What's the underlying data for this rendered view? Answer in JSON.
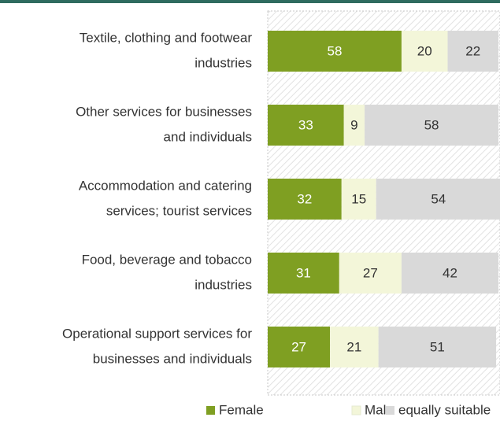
{
  "chart_data": {
    "type": "stacked-bar-horizontal",
    "categories": [
      [
        "Textile, clothing and footwear",
        "industries"
      ],
      [
        "Other services for businesses",
        "and individuals"
      ],
      [
        "Accommodation and catering",
        "services; tourist services"
      ],
      [
        "Food, beverage and tobacco",
        "industries"
      ],
      [
        "Operational support services for",
        "businesses and individuals"
      ]
    ],
    "series": [
      {
        "name": "Female",
        "color": "#7f9f22",
        "values": [
          58,
          33,
          32,
          31,
          27
        ]
      },
      {
        "name": "Male",
        "color": "#f3f6d9",
        "values": [
          20,
          9,
          15,
          27,
          21
        ]
      },
      {
        "name": "equally suitable",
        "color": "#d9d9d9",
        "values": [
          22,
          58,
          54,
          42,
          51
        ]
      }
    ],
    "xlim": [
      0,
      100
    ],
    "legend": "bottom"
  }
}
